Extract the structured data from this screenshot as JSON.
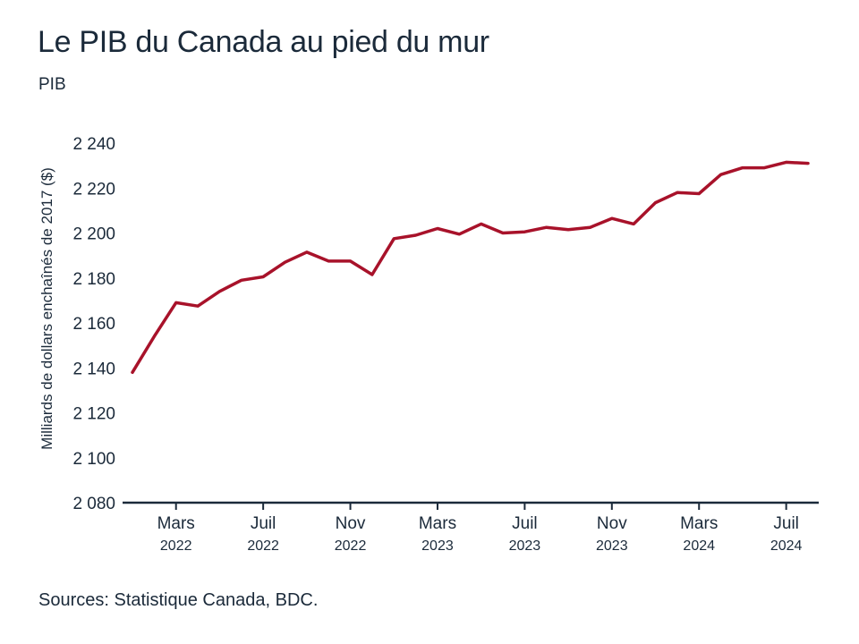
{
  "chart_data": {
    "type": "line",
    "title": "Le PIB du Canada au pied du mur",
    "subtitle": "PIB",
    "ylabel": "Milliards de dollars enchaînés de 2017 ($)",
    "xlabel": "",
    "ylim": [
      2080,
      2240
    ],
    "yticks": [
      2080,
      2100,
      2120,
      2140,
      2160,
      2180,
      2200,
      2220,
      2240
    ],
    "ytick_labels": [
      "2 080",
      "2 100",
      "2 120",
      "2 140",
      "2 160",
      "2 180",
      "2 200",
      "2 220",
      "2 240"
    ],
    "xticks": [
      {
        "month": "Mars",
        "year": "2022"
      },
      {
        "month": "Juil",
        "year": "2022"
      },
      {
        "month": "Nov",
        "year": "2022"
      },
      {
        "month": "Mars",
        "year": "2023"
      },
      {
        "month": "Juil",
        "year": "2023"
      },
      {
        "month": "Nov",
        "year": "2023"
      },
      {
        "month": "Mars",
        "year": "2024"
      },
      {
        "month": "Juil",
        "year": "2024"
      }
    ],
    "x": [
      "2022-01",
      "2022-02",
      "2022-03",
      "2022-04",
      "2022-05",
      "2022-06",
      "2022-07",
      "2022-08",
      "2022-09",
      "2022-10",
      "2022-11",
      "2022-12",
      "2023-01",
      "2023-02",
      "2023-03",
      "2023-04",
      "2023-05",
      "2023-06",
      "2023-07",
      "2023-08",
      "2023-09",
      "2023-10",
      "2023-11",
      "2023-12",
      "2024-01",
      "2024-02",
      "2024-03",
      "2024-04",
      "2024-05",
      "2024-06",
      "2024-07",
      "2024-08"
    ],
    "series": [
      {
        "color": "#a8122a",
        "values": [
          2138,
          2154,
          2169,
          2167.5,
          2174,
          2179,
          2180.5,
          2187,
          2191.5,
          2187.5,
          2187.5,
          2181.5,
          2197.5,
          2199,
          2202,
          2199.5,
          2204,
          2200,
          2200.5,
          2202.5,
          2201.5,
          2202.5,
          2206.5,
          2204,
          2213.5,
          2218,
          2217.5,
          2226,
          2229,
          2229,
          2231.5,
          2231
        ]
      }
    ],
    "grid": false,
    "legend": "none"
  },
  "source": "Sources: Statistique Canada, BDC."
}
